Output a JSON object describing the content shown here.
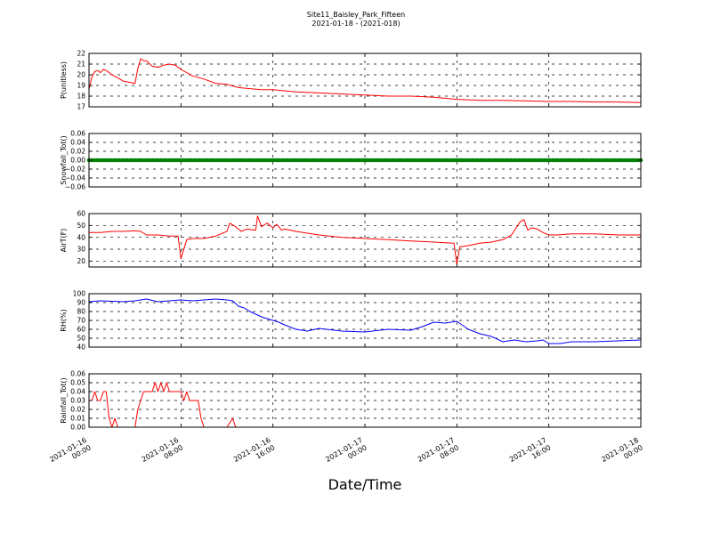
{
  "figure": {
    "title_line1": "Site11_Baisley_Park_Fifteen",
    "title_line2": "2021-01-18 - (2021-018)",
    "xlabel": "Date/Time"
  },
  "x_axis": {
    "range": [
      "2021-01-16 00:00",
      "2021-01-18 00:00"
    ],
    "ticks": [
      {
        "value": "2021-01-16 00:00",
        "line1": "2021-01-16",
        "line2": "00:00"
      },
      {
        "value": "2021-01-16 08:00",
        "line1": "2021-01-16",
        "line2": "08:00"
      },
      {
        "value": "2021-01-16 16:00",
        "line1": "2021-01-16",
        "line2": "16:00"
      },
      {
        "value": "2021-01-17 00:00",
        "line1": "2021-01-17",
        "line2": "00:00"
      },
      {
        "value": "2021-01-17 08:00",
        "line1": "2021-01-17",
        "line2": "08:00"
      },
      {
        "value": "2021-01-17 16:00",
        "line1": "2021-01-17",
        "line2": "16:00"
      },
      {
        "value": "2021-01-18 00:00",
        "line1": "2021-01-18",
        "line2": "00:00"
      }
    ]
  },
  "chart_data": [
    {
      "type": "line",
      "ylabel": "P(unitless)",
      "ylim": [
        17,
        22
      ],
      "yticks": [
        17,
        18,
        19,
        20,
        21,
        22
      ],
      "ytick_labels": [
        "17",
        "18",
        "19",
        "20",
        "21",
        "22"
      ],
      "grid": true,
      "color": "#ff0000",
      "x": [
        "2021-01-16 00:00",
        "2021-01-16 00:15",
        "2021-01-16 00:30",
        "2021-01-16 00:45",
        "2021-01-16 01:00",
        "2021-01-16 01:15",
        "2021-01-16 01:30",
        "2021-01-16 02:00",
        "2021-01-16 02:30",
        "2021-01-16 03:00",
        "2021-01-16 03:30",
        "2021-01-16 04:00",
        "2021-01-16 04:15",
        "2021-01-16 04:30",
        "2021-01-16 04:45",
        "2021-01-16 05:00",
        "2021-01-16 05:30",
        "2021-01-16 06:00",
        "2021-01-16 06:30",
        "2021-01-16 07:00",
        "2021-01-16 07:30",
        "2021-01-16 08:00",
        "2021-01-16 09:00",
        "2021-01-16 10:00",
        "2021-01-16 11:00",
        "2021-01-16 12:00",
        "2021-01-16 13:00",
        "2021-01-16 14:00",
        "2021-01-16 15:00",
        "2021-01-16 16:00",
        "2021-01-16 17:00",
        "2021-01-16 18:00",
        "2021-01-16 20:00",
        "2021-01-16 22:00",
        "2021-01-17 00:00",
        "2021-01-17 02:00",
        "2021-01-17 04:00",
        "2021-01-17 06:00",
        "2021-01-17 08:00",
        "2021-01-17 10:00",
        "2021-01-17 12:00",
        "2021-01-17 14:00",
        "2021-01-17 16:00",
        "2021-01-17 18:00",
        "2021-01-17 20:00",
        "2021-01-17 22:00",
        "2021-01-18 00:00"
      ],
      "y": [
        18.6,
        19.8,
        20.3,
        20.4,
        20.2,
        20.5,
        20.4,
        20.0,
        19.7,
        19.4,
        19.3,
        19.2,
        20.6,
        21.5,
        21.3,
        21.3,
        20.8,
        20.7,
        20.9,
        21.0,
        20.9,
        20.5,
        19.9,
        19.6,
        19.2,
        19.1,
        18.8,
        18.7,
        18.6,
        18.6,
        18.5,
        18.4,
        18.3,
        18.2,
        18.1,
        18.0,
        18.0,
        17.9,
        17.7,
        17.6,
        17.6,
        17.55,
        17.5,
        17.5,
        17.45,
        17.45,
        17.4
      ]
    },
    {
      "type": "line",
      "ylabel": "Snowfall_Tot()",
      "ylim": [
        -0.06,
        0.06
      ],
      "yticks": [
        -0.06,
        -0.04,
        -0.02,
        0.0,
        0.02,
        0.04,
        0.06
      ],
      "ytick_labels": [
        "−0.06",
        "−0.04",
        "−0.02",
        "0.00",
        "0.02",
        "0.04",
        "0.06"
      ],
      "grid": true,
      "color": "#008000",
      "marker": "dot",
      "x_range": [
        "2021-01-16 00:00",
        "2021-01-18 00:00"
      ],
      "constant_value": 0.0
    },
    {
      "type": "line",
      "ylabel": "AirT(F)",
      "ylim": [
        15,
        60
      ],
      "yticks": [
        20,
        30,
        40,
        50,
        60
      ],
      "ytick_labels": [
        "20",
        "30",
        "40",
        "50",
        "60"
      ],
      "grid": true,
      "color": "#ff0000",
      "x": [
        "2021-01-16 00:00",
        "2021-01-16 01:00",
        "2021-01-16 02:00",
        "2021-01-16 03:00",
        "2021-01-16 04:00",
        "2021-01-16 04:30",
        "2021-01-16 05:00",
        "2021-01-16 06:00",
        "2021-01-16 07:00",
        "2021-01-16 07:45",
        "2021-01-16 08:00",
        "2021-01-16 08:30",
        "2021-01-16 09:00",
        "2021-01-16 10:00",
        "2021-01-16 11:00",
        "2021-01-16 12:00",
        "2021-01-16 12:15",
        "2021-01-16 12:45",
        "2021-01-16 13:15",
        "2021-01-16 13:45",
        "2021-01-16 14:30",
        "2021-01-16 14:40",
        "2021-01-16 15:00",
        "2021-01-16 15:30",
        "2021-01-16 16:00",
        "2021-01-16 16:20",
        "2021-01-16 16:45",
        "2021-01-16 17:00",
        "2021-01-16 18:00",
        "2021-01-16 20:00",
        "2021-01-16 22:00",
        "2021-01-17 00:00",
        "2021-01-17 02:00",
        "2021-01-17 04:00",
        "2021-01-17 06:00",
        "2021-01-17 07:45",
        "2021-01-17 08:00",
        "2021-01-17 08:15",
        "2021-01-17 09:00",
        "2021-01-17 10:00",
        "2021-01-17 11:00",
        "2021-01-17 12:00",
        "2021-01-17 12:45",
        "2021-01-17 13:30",
        "2021-01-17 13:50",
        "2021-01-17 14:10",
        "2021-01-17 14:30",
        "2021-01-17 15:00",
        "2021-01-17 15:30",
        "2021-01-17 16:00",
        "2021-01-17 16:45",
        "2021-01-17 18:00",
        "2021-01-17 20:00",
        "2021-01-17 22:00",
        "2021-01-18 00:00"
      ],
      "y": [
        44,
        44,
        45,
        45,
        45.5,
        45,
        42,
        42,
        41,
        41,
        22,
        38,
        39,
        39,
        41,
        45,
        52,
        49,
        45,
        47,
        46,
        58,
        49,
        52,
        48,
        51,
        46,
        47,
        45,
        42,
        40,
        39,
        38,
        37,
        36,
        35,
        17,
        32,
        33,
        35,
        36,
        38,
        42,
        53,
        55,
        46,
        48,
        47,
        44,
        42,
        42,
        43,
        43,
        42,
        42
      ]
    },
    {
      "type": "line",
      "ylabel": "RH(%)",
      "ylim": [
        40,
        100
      ],
      "yticks": [
        40,
        50,
        60,
        70,
        80,
        90,
        100
      ],
      "ytick_labels": [
        "40",
        "50",
        "60",
        "70",
        "80",
        "90",
        "100"
      ],
      "grid": true,
      "color": "#0000ff",
      "x": [
        "2021-01-16 00:00",
        "2021-01-16 01:00",
        "2021-01-16 02:00",
        "2021-01-16 03:00",
        "2021-01-16 04:00",
        "2021-01-16 05:00",
        "2021-01-16 06:00",
        "2021-01-16 07:00",
        "2021-01-16 08:00",
        "2021-01-16 09:00",
        "2021-01-16 10:00",
        "2021-01-16 11:00",
        "2021-01-16 12:00",
        "2021-01-16 12:30",
        "2021-01-16 13:00",
        "2021-01-16 13:30",
        "2021-01-16 14:00",
        "2021-01-16 14:30",
        "2021-01-16 15:00",
        "2021-01-16 15:30",
        "2021-01-16 16:00",
        "2021-01-16 16:30",
        "2021-01-16 17:00",
        "2021-01-16 18:00",
        "2021-01-16 19:00",
        "2021-01-16 20:00",
        "2021-01-16 22:00",
        "2021-01-17 00:00",
        "2021-01-17 02:00",
        "2021-01-17 04:00",
        "2021-01-17 05:00",
        "2021-01-17 06:00",
        "2021-01-17 07:00",
        "2021-01-17 08:00",
        "2021-01-17 09:00",
        "2021-01-17 10:00",
        "2021-01-17 11:00",
        "2021-01-17 12:00",
        "2021-01-17 13:00",
        "2021-01-17 14:00",
        "2021-01-17 15:00",
        "2021-01-17 15:30",
        "2021-01-17 16:00",
        "2021-01-17 17:00",
        "2021-01-17 18:00",
        "2021-01-17 20:00",
        "2021-01-17 22:00",
        "2021-01-18 00:00"
      ],
      "y": [
        91,
        92,
        91.5,
        91,
        92,
        94,
        91,
        92,
        93,
        92,
        93,
        94,
        93,
        92,
        86,
        84,
        80,
        77,
        74,
        72,
        70,
        68,
        65,
        60,
        58,
        61,
        58,
        57,
        60,
        59,
        63,
        68,
        67,
        69,
        60,
        55,
        52,
        46,
        48,
        46,
        47,
        48,
        44,
        44,
        46,
        46,
        47,
        48
      ]
    },
    {
      "type": "line",
      "ylabel": "Rainfall_Tot()",
      "ylim": [
        0.0,
        0.06
      ],
      "yticks": [
        0.0,
        0.01,
        0.02,
        0.03,
        0.04,
        0.05,
        0.06
      ],
      "ytick_labels": [
        "0.00",
        "0.01",
        "0.02",
        "0.03",
        "0.04",
        "0.05",
        "0.06"
      ],
      "grid": true,
      "color": "#ff0000",
      "x": [
        "2021-01-16 00:00",
        "2021-01-16 00:15",
        "2021-01-16 00:30",
        "2021-01-16 00:45",
        "2021-01-16 01:00",
        "2021-01-16 01:15",
        "2021-01-16 01:30",
        "2021-01-16 01:45",
        "2021-01-16 02:00",
        "2021-01-16 02:15",
        "2021-01-16 02:30",
        "2021-01-16 02:45",
        "2021-01-16 03:00",
        "2021-01-16 04:00",
        "2021-01-16 04:15",
        "2021-01-16 04:30",
        "2021-01-16 04:45",
        "2021-01-16 05:00",
        "2021-01-16 05:15",
        "2021-01-16 05:30",
        "2021-01-16 05:45",
        "2021-01-16 06:00",
        "2021-01-16 06:15",
        "2021-01-16 06:30",
        "2021-01-16 06:45",
        "2021-01-16 07:00",
        "2021-01-16 07:30",
        "2021-01-16 07:45",
        "2021-01-16 08:00",
        "2021-01-16 08:15",
        "2021-01-16 08:30",
        "2021-01-16 08:45",
        "2021-01-16 09:00",
        "2021-01-16 09:30",
        "2021-01-16 09:45",
        "2021-01-16 10:00",
        "2021-01-16 12:00",
        "2021-01-16 12:30",
        "2021-01-16 12:45",
        "2021-01-16 13:00",
        "2021-01-18 00:00"
      ],
      "y": [
        0.03,
        0.03,
        0.04,
        0.03,
        0.03,
        0.04,
        0.04,
        0.01,
        0.0,
        0.01,
        0.0,
        0.0,
        0.0,
        0.0,
        0.02,
        0.03,
        0.04,
        0.04,
        0.04,
        0.04,
        0.05,
        0.04,
        0.05,
        0.04,
        0.05,
        0.04,
        0.04,
        0.04,
        0.04,
        0.03,
        0.04,
        0.03,
        0.03,
        0.03,
        0.01,
        0.0,
        0.0,
        0.01,
        0.0,
        0.0,
        0.0
      ]
    }
  ]
}
